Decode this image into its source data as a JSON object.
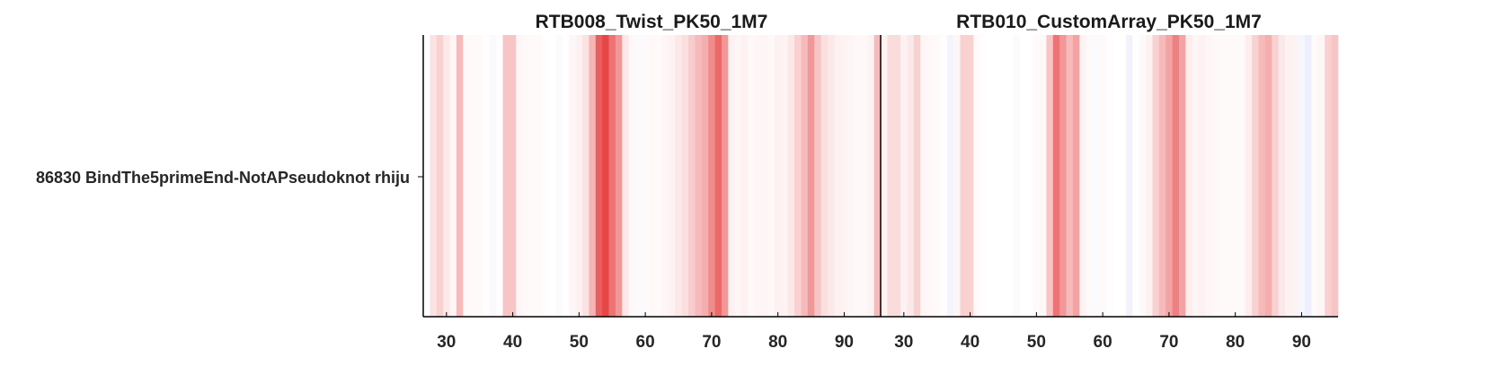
{
  "row_label": "86830  BindThe5primeEnd-NotAPseudoknot  rhiju",
  "colors": {
    "high": "#e01818",
    "low": "#2828d8",
    "axis": "#000000",
    "text": "#262626"
  },
  "chart_data": [
    {
      "type": "heatmap",
      "title": "RTB008_Twist_PK50_1M7",
      "xlim": [
        27,
        95
      ],
      "xticks": [
        30,
        40,
        50,
        60,
        70,
        80,
        90
      ],
      "xlabel": "",
      "ylabel": "",
      "rows": [
        "86830  BindThe5primeEnd-NotAPseudoknot  rhiju"
      ],
      "positions": [
        27,
        28,
        29,
        30,
        31,
        32,
        33,
        34,
        35,
        36,
        37,
        38,
        39,
        40,
        41,
        42,
        43,
        44,
        45,
        46,
        47,
        48,
        49,
        50,
        51,
        52,
        53,
        54,
        55,
        56,
        57,
        58,
        59,
        60,
        61,
        62,
        63,
        64,
        65,
        66,
        67,
        68,
        69,
        70,
        71,
        72,
        73,
        74,
        75,
        76,
        77,
        78,
        79,
        80,
        81,
        82,
        83,
        84,
        85,
        86,
        87,
        88,
        89,
        90,
        91,
        92,
        93,
        94,
        95
      ],
      "values": [
        0.0,
        0.12,
        0.2,
        0.1,
        0.04,
        0.3,
        0.03,
        0.02,
        0.02,
        0.01,
        -0.03,
        0.01,
        0.25,
        0.25,
        0.04,
        0.03,
        0.02,
        0.02,
        0.01,
        0.0,
        -0.02,
        0.0,
        0.04,
        0.06,
        0.12,
        0.32,
        0.7,
        0.8,
        0.6,
        0.45,
        0.1,
        0.03,
        -0.02,
        0.02,
        0.03,
        0.02,
        0.04,
        0.06,
        0.1,
        0.14,
        0.22,
        0.3,
        0.35,
        0.5,
        0.65,
        0.45,
        0.06,
        0.04,
        0.06,
        0.03,
        0.04,
        0.04,
        0.03,
        0.06,
        0.05,
        0.1,
        0.2,
        0.3,
        0.45,
        0.25,
        0.14,
        0.1,
        0.06,
        0.05,
        0.04,
        0.03,
        0.03,
        0.05,
        0.3
      ]
    },
    {
      "type": "heatmap",
      "title": "RTB010_CustomArray_PK50_1M7",
      "xlim": [
        27,
        95
      ],
      "xticks": [
        30,
        40,
        50,
        60,
        70,
        80,
        90
      ],
      "xlabel": "",
      "ylabel": "",
      "rows": [
        "86830  BindThe5primeEnd-NotAPseudoknot  rhiju"
      ],
      "positions": [
        27,
        28,
        29,
        30,
        31,
        32,
        33,
        34,
        35,
        36,
        37,
        38,
        39,
        40,
        41,
        42,
        43,
        44,
        45,
        46,
        47,
        48,
        49,
        50,
        51,
        52,
        53,
        54,
        55,
        56,
        57,
        58,
        59,
        60,
        61,
        62,
        63,
        64,
        65,
        66,
        67,
        68,
        69,
        70,
        71,
        72,
        73,
        74,
        75,
        76,
        77,
        78,
        79,
        80,
        81,
        82,
        83,
        84,
        85,
        86,
        87,
        88,
        89,
        90,
        91,
        92,
        93,
        94,
        95
      ],
      "values": [
        0.05,
        0.15,
        0.15,
        0.06,
        0.1,
        0.2,
        0.04,
        0.03,
        0.02,
        0.01,
        -0.05,
        0.04,
        0.2,
        0.2,
        0.02,
        0.01,
        0.0,
        0.0,
        0.0,
        0.0,
        -0.02,
        0.0,
        0.0,
        0.02,
        0.03,
        0.25,
        0.6,
        0.45,
        0.3,
        0.4,
        0.05,
        0.02,
        -0.02,
        0.02,
        0.01,
        0.0,
        0.0,
        -0.06,
        0.0,
        0.02,
        0.06,
        0.2,
        0.3,
        0.4,
        0.55,
        0.4,
        0.08,
        0.04,
        0.06,
        0.04,
        0.03,
        0.02,
        0.02,
        0.02,
        0.02,
        0.08,
        0.2,
        0.3,
        0.35,
        0.2,
        0.1,
        0.06,
        0.05,
        -0.04,
        -0.08,
        0.02,
        0.04,
        0.2,
        0.25
      ]
    }
  ]
}
